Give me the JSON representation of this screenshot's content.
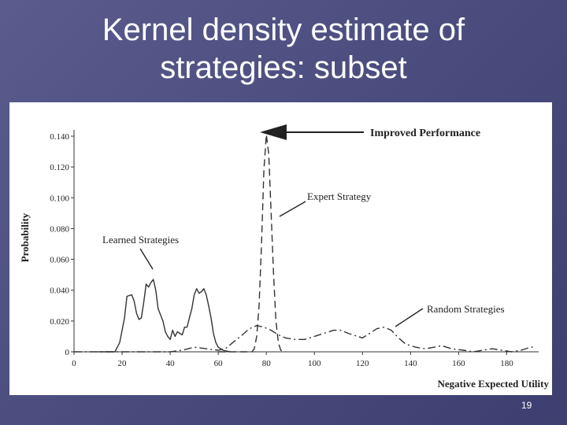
{
  "slide": {
    "title_line1": "Kernel density estimate of",
    "title_line2": "strategies: subset",
    "page_number": "19"
  },
  "chart_data": {
    "type": "line",
    "xlabel": "Negative Expected Utility",
    "ylabel": "Probability",
    "xlim": [
      0,
      190
    ],
    "ylim": [
      0,
      0.14
    ],
    "x_ticks": [
      0,
      20,
      40,
      60,
      80,
      100,
      120,
      140,
      160,
      180
    ],
    "y_ticks": [
      0,
      0.02,
      0.04,
      0.06,
      0.08,
      0.1,
      0.12,
      0.14
    ],
    "y_tick_labels": [
      "0",
      "0.020",
      "0.040",
      "0.060",
      "0.080",
      "0.100",
      "0.120",
      "0.140"
    ],
    "grid": false,
    "series": [
      {
        "name": "Learned Strategies",
        "style": "solid",
        "color": "#333333",
        "points": [
          [
            10,
            0
          ],
          [
            17,
            0
          ],
          [
            19,
            0.006
          ],
          [
            21,
            0.022
          ],
          [
            22,
            0.036
          ],
          [
            24,
            0.037
          ],
          [
            25,
            0.033
          ],
          [
            26,
            0.025
          ],
          [
            27,
            0.021
          ],
          [
            28,
            0.022
          ],
          [
            29,
            0.032
          ],
          [
            30,
            0.044
          ],
          [
            31,
            0.042
          ],
          [
            32,
            0.045
          ],
          [
            33,
            0.047
          ],
          [
            34,
            0.04
          ],
          [
            35,
            0.028
          ],
          [
            37,
            0.02
          ],
          [
            38,
            0.013
          ],
          [
            39,
            0.01
          ],
          [
            40,
            0.008
          ],
          [
            41,
            0.014
          ],
          [
            42,
            0.01
          ],
          [
            43,
            0.013
          ],
          [
            44,
            0.012
          ],
          [
            45,
            0.011
          ],
          [
            46,
            0.016
          ],
          [
            47,
            0.016
          ],
          [
            48,
            0.022
          ],
          [
            49,
            0.028
          ],
          [
            50,
            0.037
          ],
          [
            51,
            0.041
          ],
          [
            52,
            0.038
          ],
          [
            53,
            0.039
          ],
          [
            54,
            0.041
          ],
          [
            55,
            0.037
          ],
          [
            56,
            0.03
          ],
          [
            57,
            0.022
          ],
          [
            58,
            0.012
          ],
          [
            59,
            0.006
          ],
          [
            60,
            0.003
          ],
          [
            62,
            0.001
          ],
          [
            65,
            0
          ]
        ]
      },
      {
        "name": "Expert Strategy",
        "style": "dashed",
        "color": "#333333",
        "points": [
          [
            60,
            0
          ],
          [
            74,
            0
          ],
          [
            75,
            0.002
          ],
          [
            76,
            0.01
          ],
          [
            77,
            0.03
          ],
          [
            78,
            0.07
          ],
          [
            79,
            0.118
          ],
          [
            80,
            0.141
          ],
          [
            81,
            0.128
          ],
          [
            82,
            0.09
          ],
          [
            83,
            0.05
          ],
          [
            84,
            0.02
          ],
          [
            85,
            0.006
          ],
          [
            86,
            0.001
          ],
          [
            88,
            0
          ]
        ]
      },
      {
        "name": "Random Strategies",
        "style": "dashdot",
        "color": "#333333",
        "points": [
          [
            0,
            0
          ],
          [
            40,
            0
          ],
          [
            45,
            0.001
          ],
          [
            50,
            0.003
          ],
          [
            55,
            0.002
          ],
          [
            60,
            0.001
          ],
          [
            63,
            0.002
          ],
          [
            66,
            0.006
          ],
          [
            70,
            0.011
          ],
          [
            73,
            0.015
          ],
          [
            76,
            0.017
          ],
          [
            79,
            0.016
          ],
          [
            82,
            0.014
          ],
          [
            85,
            0.011
          ],
          [
            88,
            0.009
          ],
          [
            92,
            0.008
          ],
          [
            96,
            0.008
          ],
          [
            100,
            0.01
          ],
          [
            104,
            0.012
          ],
          [
            108,
            0.014
          ],
          [
            111,
            0.014
          ],
          [
            114,
            0.012
          ],
          [
            118,
            0.01
          ],
          [
            120,
            0.009
          ],
          [
            123,
            0.012
          ],
          [
            126,
            0.015
          ],
          [
            129,
            0.016
          ],
          [
            132,
            0.014
          ],
          [
            135,
            0.009
          ],
          [
            138,
            0.005
          ],
          [
            142,
            0.003
          ],
          [
            146,
            0.002
          ],
          [
            150,
            0.003
          ],
          [
            153,
            0.004
          ],
          [
            157,
            0.002
          ],
          [
            162,
            0.001
          ],
          [
            166,
            0
          ],
          [
            170,
            0.001
          ],
          [
            174,
            0.002
          ],
          [
            178,
            0.001
          ],
          [
            182,
            0
          ],
          [
            186,
            0.001
          ],
          [
            190,
            0.003
          ],
          [
            192,
            0.003
          ]
        ]
      }
    ],
    "annotations": [
      {
        "text": "Improved Performance",
        "bold": true
      },
      {
        "text": "Expert Strategy"
      },
      {
        "text": "Learned Strategies"
      },
      {
        "text": "Random Strategies"
      }
    ]
  }
}
